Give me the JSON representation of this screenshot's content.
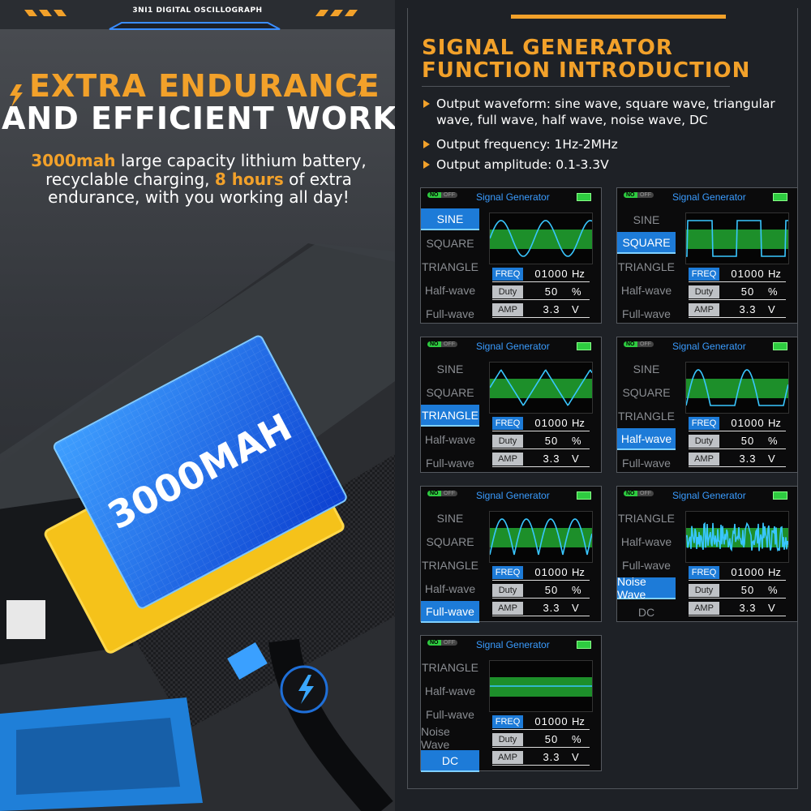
{
  "header": {
    "brand": "3NI1 DIGITAL OSCILLOGRAPH"
  },
  "left": {
    "title_line1": "EXTRA ENDURANCE",
    "title_line2": "AND EFFICIENT WORK",
    "body": [
      {
        "text": "3000mah",
        "accent": true
      },
      {
        "text": " large capacity lithium battery, recyclable charging, ",
        "accent": false
      },
      {
        "text": "8 hours",
        "accent": true
      },
      {
        "text": " of extra endurance, with you working all day!",
        "accent": false
      }
    ],
    "battery_label": "3000MAH"
  },
  "right": {
    "title_line1": "SIGNAL GENERATOR",
    "title_line2": "FUNCTION INTRODUCTION",
    "bullets": [
      "Output waveform: sine wave, square wave, triangular wave, full wave, half wave, noise wave, DC",
      "Output frequency: 1Hz-2MHz",
      "Output amplitude: 0.1-3.3V"
    ],
    "panel_common": {
      "toggle_on": "NO",
      "toggle_off": "OFF",
      "header": "Signal Generator",
      "freq_label": "FREQ",
      "freq_unit": "Hz",
      "duty_label": "Duty",
      "duty_unit": "%",
      "amp_label": "AMP",
      "amp_unit": "V"
    },
    "panels": [
      {
        "menu": [
          "SINE",
          "SQUARE",
          "TRIANGLE",
          "Half-wave",
          "Full-wave"
        ],
        "selected": 0,
        "wave": "sine",
        "freq": "01000",
        "duty": 50,
        "amp": 3.3
      },
      {
        "menu": [
          "SINE",
          "SQUARE",
          "TRIANGLE",
          "Half-wave",
          "Full-wave"
        ],
        "selected": 1,
        "wave": "square",
        "freq": "01000",
        "duty": 50,
        "amp": 3.3
      },
      {
        "menu": [
          "SINE",
          "SQUARE",
          "TRIANGLE",
          "Half-wave",
          "Full-wave"
        ],
        "selected": 2,
        "wave": "triangle",
        "freq": "01000",
        "duty": 50,
        "amp": 3.3
      },
      {
        "menu": [
          "SINE",
          "SQUARE",
          "TRIANGLE",
          "Half-wave",
          "Full-wave"
        ],
        "selected": 3,
        "wave": "half",
        "freq": "01000",
        "duty": 50,
        "amp": 3.3
      },
      {
        "menu": [
          "SINE",
          "SQUARE",
          "TRIANGLE",
          "Half-wave",
          "Full-wave"
        ],
        "selected": 4,
        "wave": "full",
        "freq": "01000",
        "duty": 50,
        "amp": 3.3
      },
      {
        "menu": [
          "TRIANGLE",
          "Half-wave",
          "Full-wave",
          "Noise Wave",
          "DC"
        ],
        "selected": 3,
        "wave": "noise",
        "freq": "01000",
        "duty": 50,
        "amp": 3.3
      },
      {
        "menu": [
          "TRIANGLE",
          "Half-wave",
          "Full-wave",
          "Noise Wave",
          "DC"
        ],
        "selected": 4,
        "wave": "dc",
        "freq": "01000",
        "duty": 50,
        "amp": 3.3
      }
    ]
  }
}
